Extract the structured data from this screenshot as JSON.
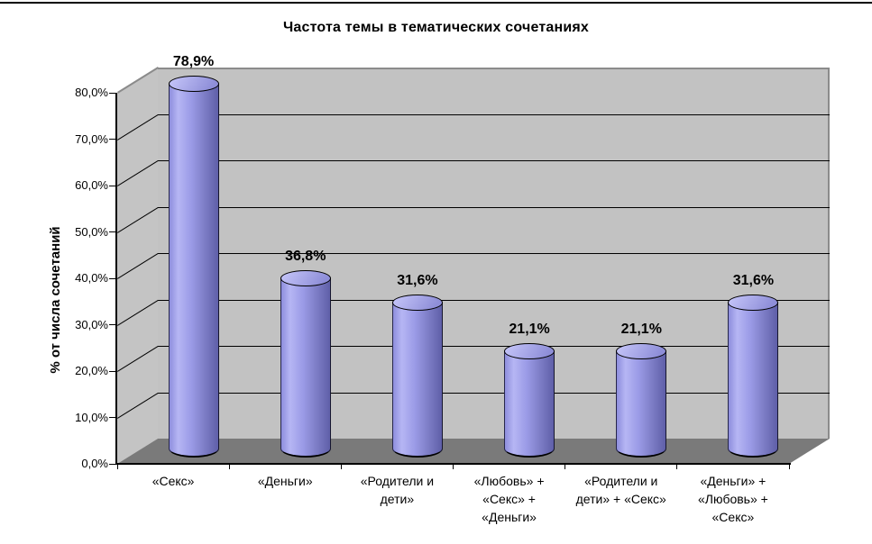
{
  "chart_data": {
    "type": "bar",
    "subtype": "3d-cylinder",
    "title": "Частота темы в тематических сочетаниях",
    "ylabel": "% от числа сочетаний",
    "xlabel": "",
    "categories": [
      "«Секс»",
      "«Деньги»",
      "«Родители и\nдети»",
      "«Любовь» +\n«Секс» +\n«Деньги»",
      "«Родители и\nдети» + «Секс»",
      "«Деньги» +\n«Любовь» +\n«Секс»"
    ],
    "values": [
      78.9,
      36.8,
      31.6,
      21.1,
      21.1,
      31.6
    ],
    "value_labels": [
      "78,9%",
      "36,8%",
      "31,6%",
      "21,1%",
      "21,1%",
      "31,6%"
    ],
    "y_ticks": [
      "80,0%",
      "70,0%",
      "60,0%",
      "50,0%",
      "40,0%",
      "30,0%",
      "20,0%",
      "10,0%",
      "0,0%"
    ],
    "ylim": [
      0,
      80
    ],
    "y_step": 10,
    "grid": true,
    "legend": "none",
    "colors": {
      "bar_highlight": "#b6b6f4",
      "bar_mid": "#9292e0",
      "bar_shadow": "#5f5fa8",
      "wall": "#c2c2c2",
      "floor": "#7a7a7a",
      "gridline": "#000000",
      "wall_edge": "#8b8b8b",
      "background": "#ffffff",
      "text": "#000000"
    }
  }
}
